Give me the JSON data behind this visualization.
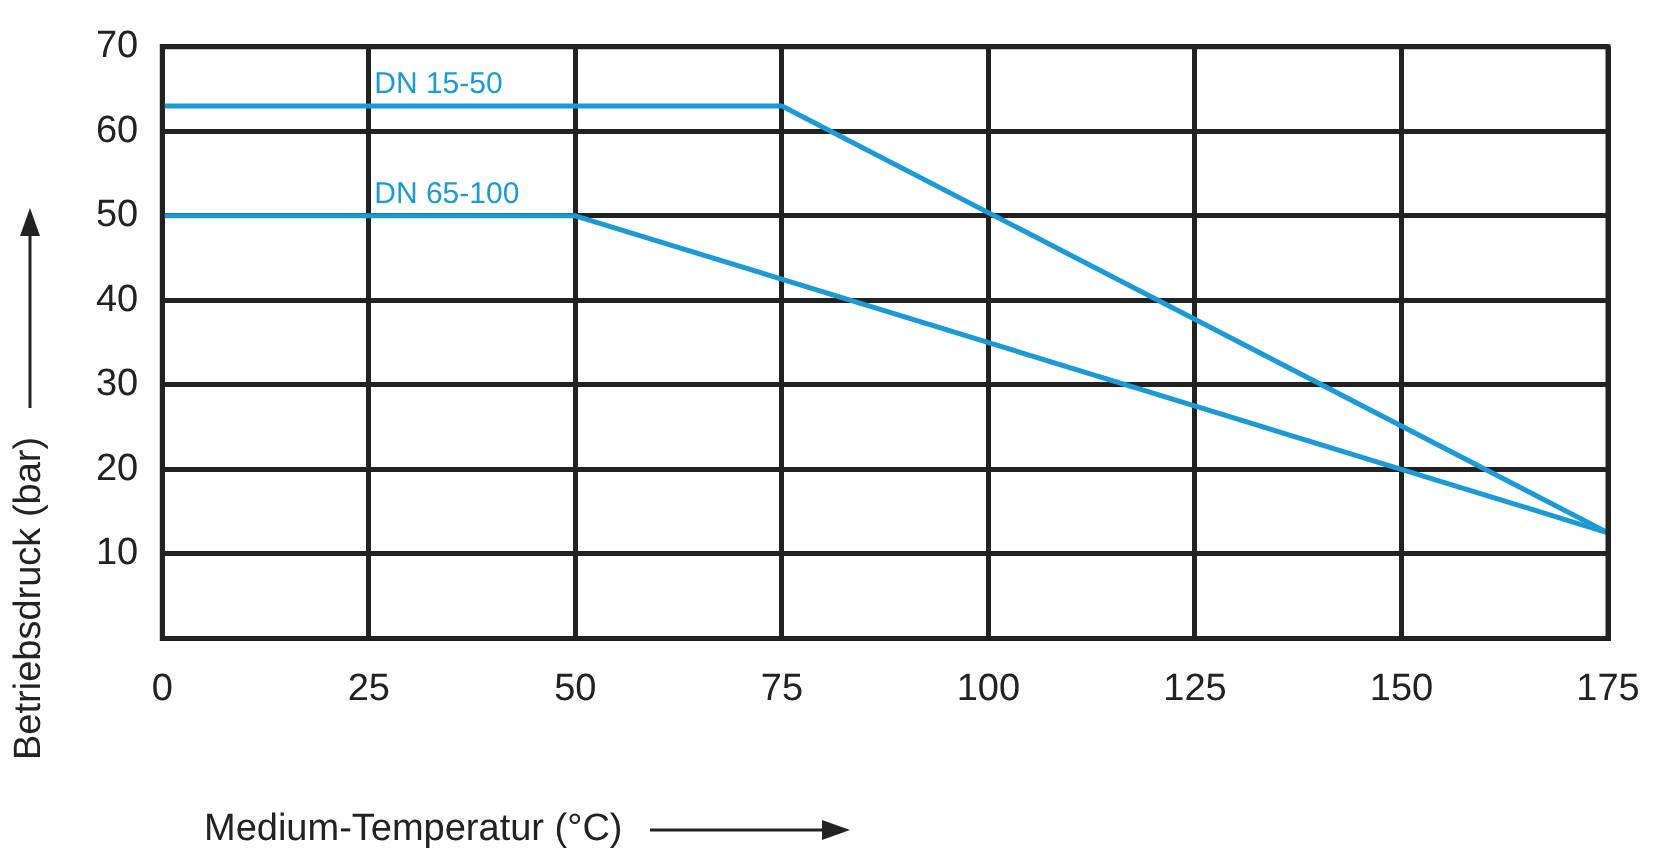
{
  "chart_data": {
    "type": "line",
    "xlabel": "Medium-Temperatur (°C)",
    "ylabel": "Betriebsdruck (bar)",
    "series": [
      {
        "name": "DN 15-50",
        "color": "#1a9ad6",
        "x": [
          0,
          75,
          175
        ],
        "values": [
          63,
          63,
          12.5
        ]
      },
      {
        "name": "DN 65-100",
        "color": "#1a9ad6",
        "x": [
          0,
          50,
          175
        ],
        "values": [
          50,
          50,
          12.5
        ]
      }
    ],
    "xlim": [
      0,
      175
    ],
    "xticks": [
      0,
      25,
      50,
      75,
      100,
      125,
      150,
      175
    ],
    "ylim": [
      0,
      70
    ],
    "yticks": [
      {
        "value": 0,
        "label": null
      },
      10,
      20,
      30,
      40,
      50,
      60,
      70
    ],
    "grid": true,
    "legend": false,
    "marker": "none",
    "line_style": "solid"
  }
}
